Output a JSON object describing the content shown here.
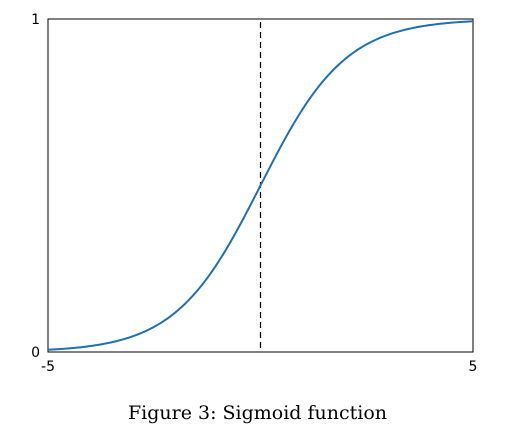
{
  "chart_data": {
    "type": "line",
    "title": "",
    "xlabel": "",
    "ylabel": "",
    "xlim": [
      -5,
      5
    ],
    "ylim": [
      0,
      1
    ],
    "grid": false,
    "x_tick_labels": [
      "-5",
      "5"
    ],
    "y_tick_labels": [
      "0",
      "1"
    ],
    "function": "sigmoid",
    "series": [
      {
        "color": "#1f6fb5",
        "x": [
          -5,
          -4.5,
          -4,
          -3.5,
          -3,
          -2.5,
          -2,
          -1.5,
          -1,
          -0.5,
          0,
          0.5,
          1,
          1.5,
          2,
          2.5,
          3,
          3.5,
          4,
          4.5,
          5
        ],
        "y": [
          0.0067,
          0.011,
          0.018,
          0.0293,
          0.0474,
          0.0759,
          0.1192,
          0.1824,
          0.2689,
          0.3775,
          0.5,
          0.6225,
          0.7311,
          0.8176,
          0.8808,
          0.9241,
          0.9526,
          0.9707,
          0.982,
          0.989,
          0.9933
        ]
      }
    ],
    "vertical_line": {
      "x": 0,
      "style": "dashed",
      "color": "#000000"
    }
  },
  "caption": "Figure 3: Sigmoid function"
}
